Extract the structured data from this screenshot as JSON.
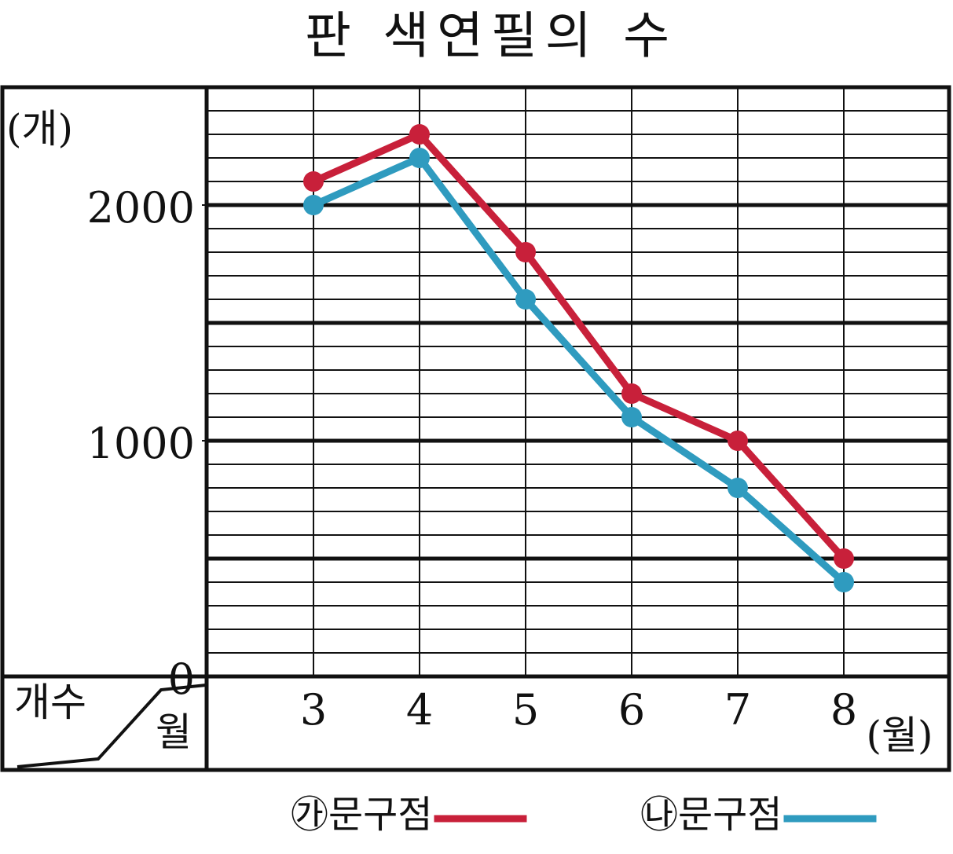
{
  "chart_data": {
    "type": "line",
    "title": "판 색연필의 수",
    "y_label": "(개)",
    "x_label": "(월)",
    "corner_left": "개수",
    "corner_right": "월",
    "categories": [
      "3",
      "4",
      "5",
      "6",
      "7",
      "8"
    ],
    "series": [
      {
        "name": "㉮문구점",
        "color": "#c8203a",
        "values": [
          2100,
          2300,
          1800,
          1200,
          1000,
          500
        ]
      },
      {
        "name": "㉯문구점",
        "color": "#2f9bbf",
        "values": [
          2000,
          2200,
          1600,
          1100,
          800,
          400
        ]
      }
    ],
    "ylim": [
      0,
      2500
    ],
    "yticks": [
      0,
      1000,
      2000
    ],
    "grid_minor_step": 100,
    "grid_major_step": 500
  }
}
